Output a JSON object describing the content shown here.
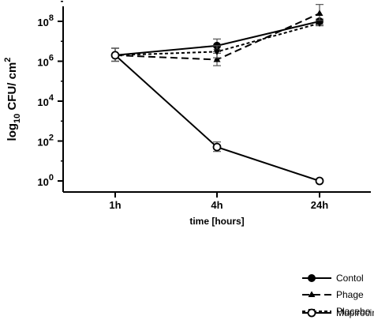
{
  "chart_data": {
    "type": "line",
    "x_categories": [
      "1h",
      "4h",
      "24h"
    ],
    "xlabel": "time [hours]",
    "ylabel": {
      "base": "log",
      "sub": "10",
      "rest": " CFU/ cm",
      "sup": "2"
    },
    "yscale": "log",
    "ylim": [
      1,
      1000000000
    ],
    "y_ticks": [
      {
        "value": 1,
        "mant": "10",
        "exp": "0"
      },
      {
        "value": 100,
        "mant": "10",
        "exp": "2"
      },
      {
        "value": 10000,
        "mant": "10",
        "exp": "4"
      },
      {
        "value": 1000000,
        "mant": "10",
        "exp": "6"
      },
      {
        "value": 100000000,
        "mant": "10",
        "exp": "8"
      }
    ],
    "series": [
      {
        "name": "Contol",
        "marker": "circle-filled",
        "dash": "solid",
        "values": [
          2000000,
          6000000,
          100000000
        ],
        "err_low": [
          1000000,
          3000000,
          70000000
        ],
        "err_high": [
          4500000,
          13000000,
          130000000
        ]
      },
      {
        "name": "Phage",
        "marker": "triangle-up",
        "dash": "longdash",
        "values": [
          2000000,
          1200000,
          250000000
        ],
        "err_low": [
          1000000,
          600000,
          100000000
        ],
        "err_high": [
          4500000,
          2500000,
          700000000
        ]
      },
      {
        "name": "Placebo",
        "marker": "triangle-down",
        "dash": "dotted",
        "values": [
          2000000,
          3000000,
          80000000
        ],
        "err_low": [
          1000000,
          1500000,
          60000000
        ],
        "err_high": [
          4500000,
          6000000,
          110000000
        ]
      },
      {
        "name": "Mupirocin",
        "marker": "circle-open",
        "dash": "solid",
        "values": [
          2000000,
          50,
          1
        ],
        "err_low": [
          1000000,
          30,
          null
        ],
        "err_high": [
          4500000,
          90,
          null
        ]
      }
    ],
    "legend_position": "bottom-right",
    "grid": false,
    "colors": {
      "line": "#000000",
      "background": "#ffffff"
    }
  }
}
